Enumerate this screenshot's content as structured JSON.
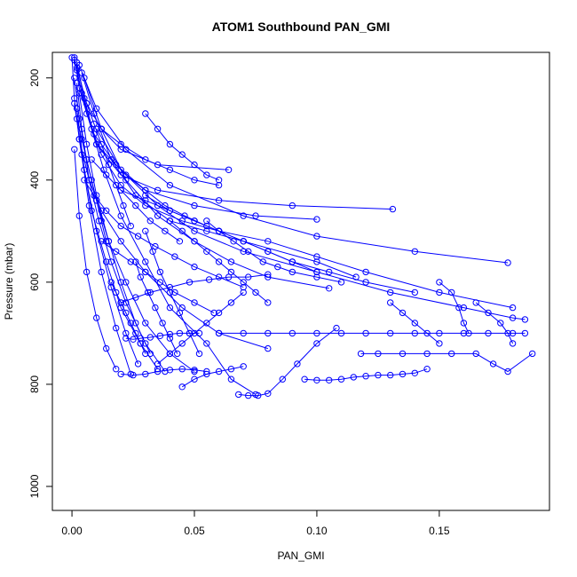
{
  "chart_data": {
    "type": "scatter",
    "title": "ATOM1 Southbound PAN_GMI",
    "xlabel": "PAN_GMI",
    "ylabel": "Pressure (mbar)",
    "xlim": [
      -0.008,
      0.195
    ],
    "ylim": [
      1047,
      150
    ],
    "y_reversed": true,
    "grid": false,
    "legend": "none",
    "x_ticks": [
      {
        "value": 0.0,
        "label": "0.00"
      },
      {
        "value": 0.05,
        "label": "0.05"
      },
      {
        "value": 0.1,
        "label": "0.10"
      },
      {
        "value": 0.15,
        "label": "0.15"
      }
    ],
    "y_ticks": [
      {
        "value": 200,
        "label": "200"
      },
      {
        "value": 400,
        "label": "400"
      },
      {
        "value": 600,
        "label": "600"
      },
      {
        "value": 800,
        "label": "800"
      },
      {
        "value": 1000,
        "label": "1000"
      }
    ],
    "color": "#0000ff",
    "series": [
      {
        "x": [
          0.001,
          0.003,
          0.008,
          0.013,
          0.02,
          0.03,
          0.04,
          0.055,
          0.065,
          0.075
        ],
        "y": [
          160,
          220,
          300,
          380,
          470,
          560,
          650,
          720,
          790,
          820
        ]
      },
      {
        "x": [
          0.002,
          0.005,
          0.01,
          0.02,
          0.035,
          0.06,
          0.09,
          0.131
        ],
        "y": [
          170,
          240,
          330,
          390,
          420,
          440,
          450,
          457
        ]
      },
      {
        "x": [
          0.003,
          0.01,
          0.022,
          0.04,
          0.07,
          0.1,
          0.14,
          0.178
        ],
        "y": [
          175,
          260,
          340,
          410,
          470,
          510,
          540,
          562
        ]
      },
      {
        "x": [
          0.002,
          0.006,
          0.012,
          0.02,
          0.035,
          0.064
        ],
        "y": [
          180,
          250,
          300,
          340,
          370,
          380
        ]
      },
      {
        "x": [
          0.001,
          0.004,
          0.009,
          0.018,
          0.03,
          0.05,
          0.075,
          0.1
        ],
        "y": [
          165,
          230,
          310,
          370,
          420,
          450,
          470,
          477
        ]
      },
      {
        "x": [
          0.004,
          0.009,
          0.016,
          0.026,
          0.04,
          0.055,
          0.07,
          0.1,
          0.116
        ],
        "y": [
          190,
          270,
          360,
          430,
          480,
          500,
          520,
          560,
          590
        ]
      },
      {
        "x": [
          0.002,
          0.006,
          0.012,
          0.02,
          0.03,
          0.045,
          0.06,
          0.08,
          0.1,
          0.12,
          0.15,
          0.18
        ],
        "y": [
          185,
          270,
          350,
          410,
          450,
          480,
          500,
          520,
          550,
          580,
          620,
          650
        ]
      },
      {
        "x": [
          0.01,
          0.02,
          0.035,
          0.05,
          0.07,
          0.1,
          0.13,
          0.16,
          0.18,
          0.185
        ],
        "y": [
          300,
          380,
          450,
          500,
          540,
          580,
          620,
          650,
          670,
          673
        ]
      },
      {
        "x": [
          0.005,
          0.012,
          0.022,
          0.035,
          0.05,
          0.065,
          0.08,
          0.105
        ],
        "y": [
          200,
          300,
          400,
          470,
          520,
          560,
          590,
          612
        ]
      },
      {
        "x": [
          0.0,
          0.001,
          0.003,
          0.007,
          0.012,
          0.02,
          0.03,
          0.045,
          0.06,
          0.08
        ],
        "y": [
          160,
          240,
          320,
          400,
          460,
          520,
          580,
          650,
          700,
          730
        ]
      },
      {
        "x": [
          0.001,
          0.003,
          0.006,
          0.01,
          0.015,
          0.022,
          0.03,
          0.04,
          0.05
        ],
        "y": [
          200,
          280,
          360,
          440,
          520,
          600,
          680,
          740,
          775
        ]
      },
      {
        "x": [
          0.002,
          0.004,
          0.007,
          0.011,
          0.016,
          0.022,
          0.03,
          0.038
        ],
        "y": [
          210,
          300,
          400,
          480,
          560,
          640,
          720,
          775
        ]
      },
      {
        "x": [
          0.003,
          0.006,
          0.01,
          0.015,
          0.02,
          0.026,
          0.032
        ],
        "y": [
          230,
          330,
          430,
          520,
          600,
          680,
          740
        ]
      },
      {
        "x": [
          0.001,
          0.004,
          0.008,
          0.014,
          0.02,
          0.028,
          0.035
        ],
        "y": [
          250,
          350,
          460,
          560,
          650,
          720,
          770
        ]
      },
      {
        "x": [
          0.002,
          0.005,
          0.01,
          0.016,
          0.022,
          0.027
        ],
        "y": [
          260,
          380,
          500,
          610,
          700,
          760
        ]
      },
      {
        "x": [
          0.003,
          0.007,
          0.012,
          0.018,
          0.024
        ],
        "y": [
          320,
          450,
          580,
          690,
          780
        ]
      },
      {
        "x": [
          0.001,
          0.003,
          0.006,
          0.01,
          0.014,
          0.018
        ],
        "y": [
          340,
          470,
          580,
          670,
          730,
          770
        ]
      },
      {
        "x": [
          0.06,
          0.07,
          0.08,
          0.09,
          0.1,
          0.11,
          0.12,
          0.13,
          0.14,
          0.15,
          0.16,
          0.17,
          0.18,
          0.185
        ],
        "y": [
          700,
          700,
          700,
          700,
          700,
          700,
          700,
          700,
          700,
          700,
          700,
          700,
          700,
          700
        ]
      },
      {
        "x": [
          0.095,
          0.1,
          0.105,
          0.11,
          0.115,
          0.12,
          0.125,
          0.13,
          0.135,
          0.14,
          0.145
        ],
        "y": [
          790,
          792,
          792,
          790,
          786,
          784,
          782,
          782,
          780,
          778,
          770
        ]
      },
      {
        "x": [
          0.118,
          0.125,
          0.135,
          0.145,
          0.155,
          0.165,
          0.172,
          0.178,
          0.188
        ],
        "y": [
          740,
          740,
          740,
          740,
          740,
          740,
          760,
          775,
          740
        ]
      },
      {
        "x": [
          0.068,
          0.072,
          0.076,
          0.08,
          0.086,
          0.092,
          0.1,
          0.108
        ],
        "y": [
          820,
          822,
          822,
          818,
          790,
          760,
          720,
          690
        ]
      },
      {
        "x": [
          0.045,
          0.05,
          0.055,
          0.06,
          0.065,
          0.07
        ],
        "y": [
          805,
          790,
          780,
          775,
          770,
          765
        ]
      },
      {
        "x": [
          0.02,
          0.025,
          0.03,
          0.035,
          0.04,
          0.045,
          0.05,
          0.055
        ],
        "y": [
          780,
          782,
          780,
          775,
          772,
          770,
          772,
          775
        ]
      },
      {
        "x": [
          0.022,
          0.025,
          0.028,
          0.032,
          0.036,
          0.04,
          0.044,
          0.048,
          0.052
        ],
        "y": [
          710,
          712,
          710,
          708,
          705,
          702,
          700,
          700,
          700
        ]
      },
      {
        "x": [
          0.035,
          0.04,
          0.045,
          0.05,
          0.055,
          0.06,
          0.065,
          0.07
        ],
        "y": [
          760,
          740,
          720,
          700,
          680,
          660,
          640,
          620
        ]
      },
      {
        "x": [
          0.02,
          0.026,
          0.032,
          0.04,
          0.048,
          0.056,
          0.064,
          0.072,
          0.08
        ],
        "y": [
          640,
          630,
          620,
          610,
          600,
          595,
          590,
          590,
          585
        ]
      },
      {
        "x": [
          0.012,
          0.018,
          0.024,
          0.03,
          0.036,
          0.042,
          0.05,
          0.058
        ],
        "y": [
          520,
          540,
          560,
          580,
          600,
          620,
          640,
          660
        ]
      },
      {
        "x": [
          0.005,
          0.009,
          0.014,
          0.02,
          0.027,
          0.034,
          0.042,
          0.05,
          0.06,
          0.07
        ],
        "y": [
          400,
          430,
          460,
          490,
          510,
          530,
          550,
          570,
          590,
          610
        ]
      },
      {
        "x": [
          0.016,
          0.018,
          0.02,
          0.022,
          0.024,
          0.026,
          0.028,
          0.03
        ],
        "y": [
          600,
          620,
          640,
          660,
          680,
          700,
          720,
          740
        ]
      },
      {
        "x": [
          0.026,
          0.028,
          0.031,
          0.034,
          0.037,
          0.04,
          0.043
        ],
        "y": [
          560,
          590,
          620,
          650,
          680,
          710,
          740
        ]
      },
      {
        "x": [
          0.03,
          0.033,
          0.036,
          0.04,
          0.044,
          0.048,
          0.052
        ],
        "y": [
          500,
          540,
          580,
          620,
          660,
          700,
          740
        ]
      },
      {
        "x": [
          0.04,
          0.045,
          0.05,
          0.055,
          0.06,
          0.065,
          0.07,
          0.075,
          0.08
        ],
        "y": [
          480,
          500,
          520,
          540,
          560,
          580,
          600,
          620,
          640
        ]
      },
      {
        "x": [
          0.055,
          0.06,
          0.066,
          0.072,
          0.078,
          0.084,
          0.09,
          0.1,
          0.11
        ],
        "y": [
          480,
          500,
          520,
          540,
          560,
          570,
          580,
          590,
          600
        ]
      },
      {
        "x": [
          0.03,
          0.04,
          0.05,
          0.06,
          0.07,
          0.08,
          0.09,
          0.1
        ],
        "y": [
          430,
          460,
          480,
          500,
          520,
          540,
          560,
          580
        ]
      },
      {
        "x": [
          0.02,
          0.03,
          0.04,
          0.05,
          0.06,
          0.07,
          0.08,
          0.09,
          0.105,
          0.12,
          0.14
        ],
        "y": [
          420,
          440,
          460,
          480,
          500,
          520,
          540,
          560,
          580,
          600,
          620
        ]
      },
      {
        "x": [
          0.008,
          0.014,
          0.02,
          0.026,
          0.032,
          0.038,
          0.044
        ],
        "y": [
          360,
          390,
          420,
          450,
          480,
          500,
          520
        ]
      },
      {
        "x": [
          0.01,
          0.016,
          0.022,
          0.03,
          0.038,
          0.046,
          0.055
        ],
        "y": [
          330,
          360,
          390,
          420,
          450,
          470,
          490
        ]
      },
      {
        "x": [
          0.012,
          0.02,
          0.03,
          0.04,
          0.05,
          0.06
        ],
        "y": [
          300,
          330,
          360,
          380,
          400,
          410
        ]
      },
      {
        "x": [
          0.15,
          0.155,
          0.158,
          0.16,
          0.162
        ],
        "y": [
          600,
          620,
          650,
          680,
          700
        ]
      },
      {
        "x": [
          0.165,
          0.17,
          0.175,
          0.178,
          0.18
        ],
        "y": [
          640,
          660,
          680,
          700,
          720
        ]
      },
      {
        "x": [
          0.13,
          0.135,
          0.14,
          0.145,
          0.15
        ],
        "y": [
          640,
          660,
          680,
          700,
          720
        ]
      },
      {
        "x": [
          0.03,
          0.035,
          0.04,
          0.045,
          0.05,
          0.055,
          0.06
        ],
        "y": [
          270,
          300,
          330,
          350,
          370,
          390,
          400
        ]
      },
      {
        "x": [
          0.006,
          0.009,
          0.012,
          0.015,
          0.018,
          0.021,
          0.024
        ],
        "y": [
          250,
          290,
          330,
          370,
          410,
          450,
          490
        ]
      },
      {
        "x": [
          0.002,
          0.004,
          0.006,
          0.008,
          0.01,
          0.012,
          0.014
        ],
        "y": [
          280,
          320,
          360,
          400,
          440,
          480,
          520
        ]
      }
    ]
  }
}
